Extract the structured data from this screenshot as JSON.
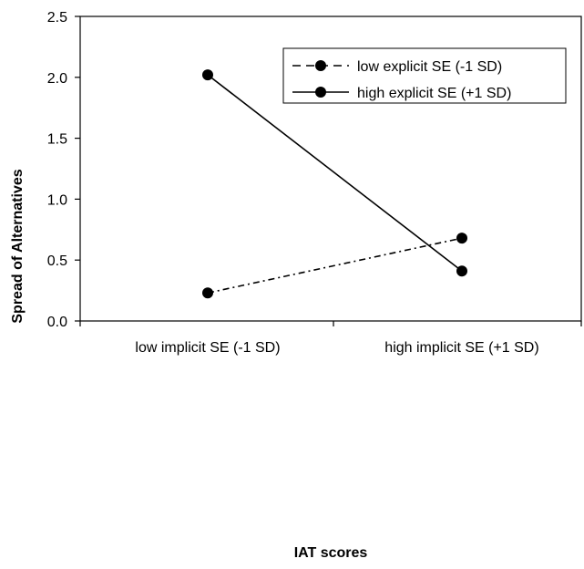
{
  "chart_data": {
    "type": "line",
    "title": "",
    "xlabel": "IAT scores",
    "ylabel": "Spread of Alternatives",
    "categories": [
      "low implicit SE (-1 SD)",
      "high implicit SE (+1 SD)"
    ],
    "ylim": [
      0.0,
      2.5
    ],
    "yticks": [
      "0.0",
      "0.5",
      "1.0",
      "1.5",
      "2.0",
      "2.5"
    ],
    "grid": false,
    "legend_position": "top-right",
    "series": [
      {
        "name": "low explicit SE (-1 SD)",
        "values": [
          0.23,
          0.68
        ],
        "style": "dashed",
        "color": "#000000"
      },
      {
        "name": "high explicit SE (+1 SD)",
        "values": [
          2.02,
          0.41
        ],
        "style": "solid",
        "color": "#000000"
      }
    ]
  }
}
